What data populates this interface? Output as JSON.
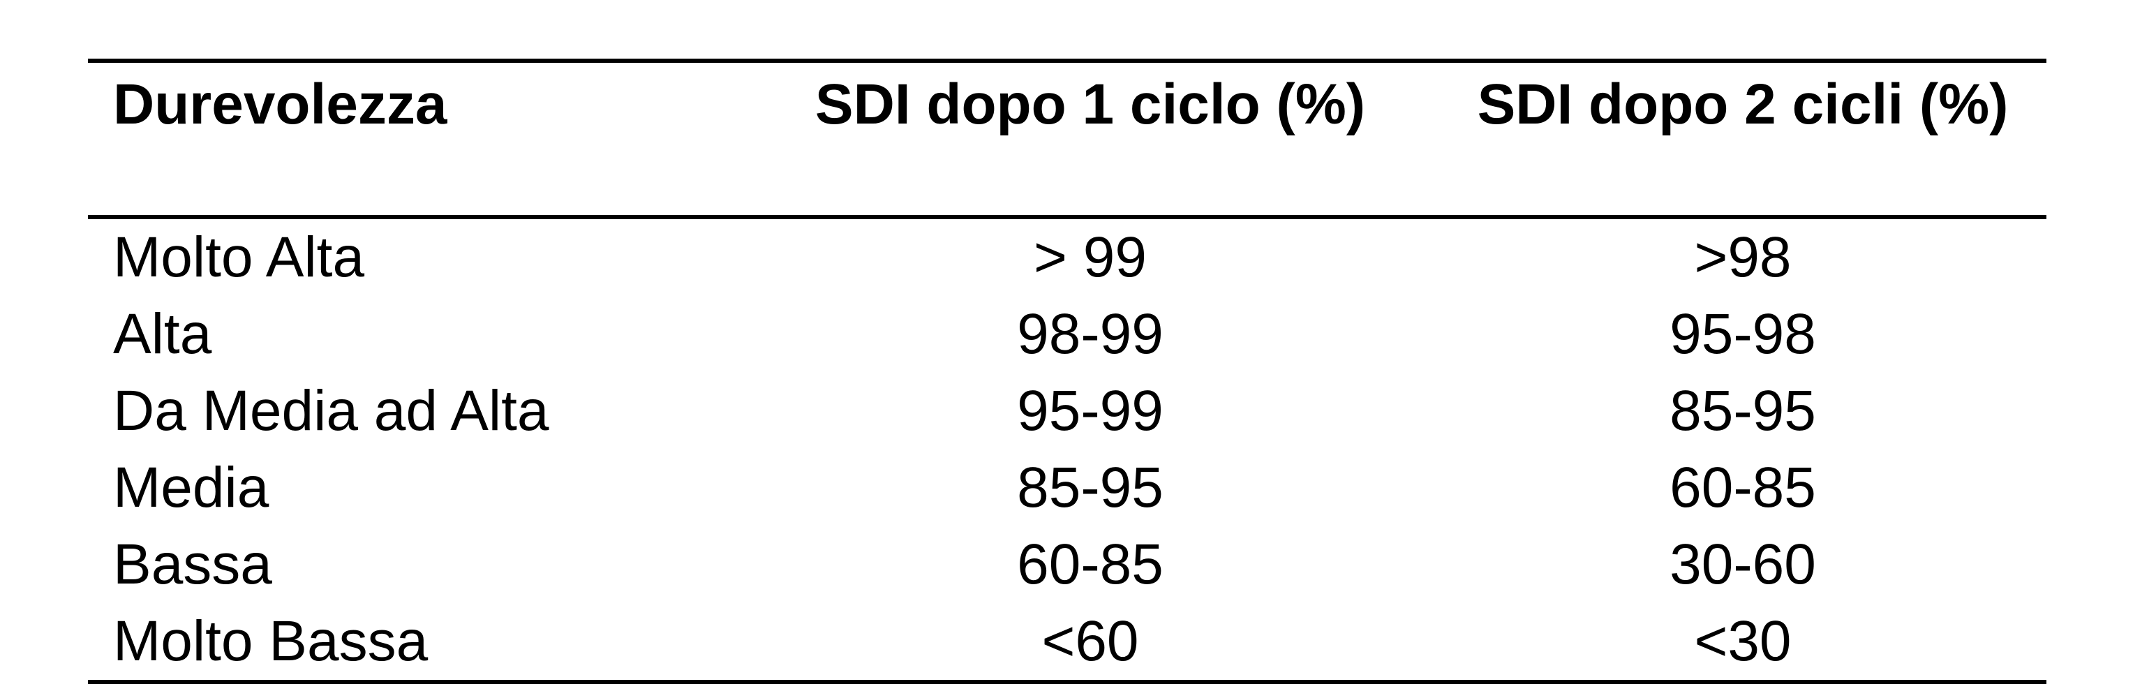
{
  "table": {
    "headers": [
      "Durevolezza",
      "SDI dopo 1 ciclo (%)",
      "SDI dopo 2 cicli (%)"
    ],
    "rows": [
      [
        "Molto Alta",
        "> 99",
        ">98"
      ],
      [
        "Alta",
        "98-99",
        "95-98"
      ],
      [
        "Da Media ad Alta",
        "95-99",
        "85-95"
      ],
      [
        "Media",
        "85-95",
        "60-85"
      ],
      [
        "Bassa",
        "60-85",
        "30-60"
      ],
      [
        "Molto Bassa",
        "<60",
        "<30"
      ]
    ]
  },
  "chart_data": {
    "type": "table",
    "columns": [
      "Durevolezza",
      "SDI dopo 1 ciclo (%)",
      "SDI dopo 2 cicli (%)"
    ],
    "rows": [
      [
        "Molto Alta",
        "> 99",
        ">98"
      ],
      [
        "Alta",
        "98-99",
        "95-98"
      ],
      [
        "Da Media ad Alta",
        "95-99",
        "85-95"
      ],
      [
        "Media",
        "85-95",
        "60-85"
      ],
      [
        "Bassa",
        "60-85",
        "30-60"
      ],
      [
        "Molto Bassa",
        "<60",
        "<30"
      ]
    ]
  }
}
